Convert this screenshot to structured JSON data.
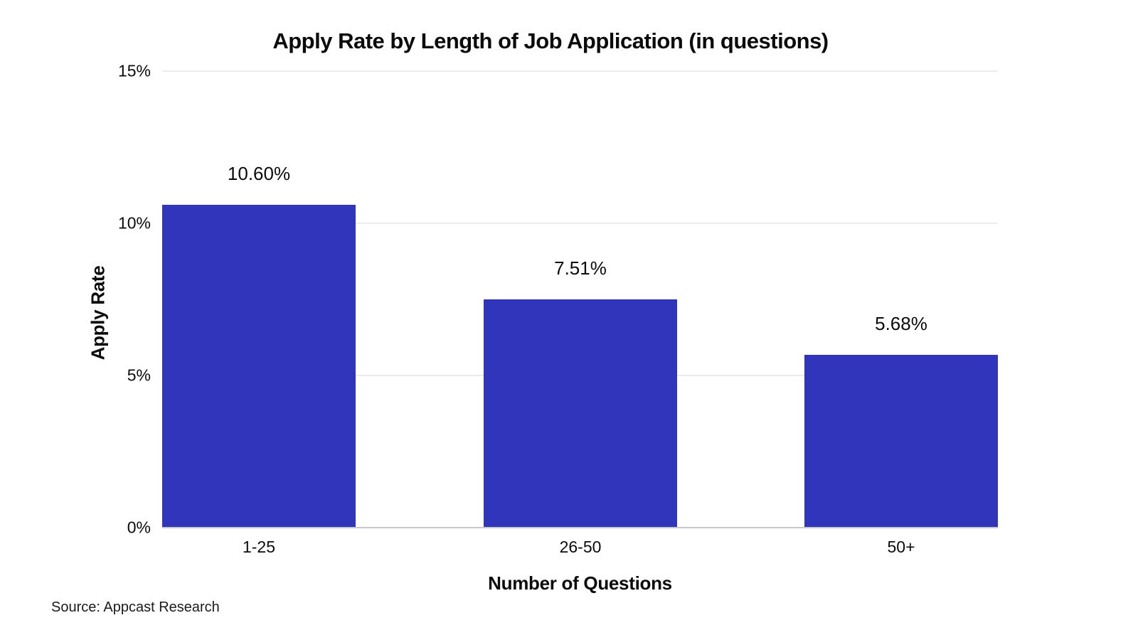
{
  "title": "Apply Rate by Length of Job Application (in questions)",
  "source_note": "Source: Appcast Research",
  "colors": {
    "bar": "#3135BC",
    "gridline": "#ececec",
    "baseline": "#c9c9c9",
    "text": "#0b0b0b",
    "background": "#ffffff"
  },
  "chart_data": {
    "type": "bar",
    "title": "Apply Rate by Length of Job Application (in questions)",
    "categories": [
      "1-25",
      "26-50",
      "50+"
    ],
    "values": [
      10.6,
      7.51,
      5.68
    ],
    "value_labels": [
      "10.60%",
      "7.51%",
      "5.68%"
    ],
    "xlabel": "Number of Questions",
    "ylabel": "Apply Rate",
    "ylim": [
      0,
      15
    ],
    "yticks": [
      0,
      5,
      10,
      15
    ],
    "ytick_labels": [
      "0%",
      "5%",
      "10%",
      "15%"
    ],
    "grid": true,
    "legend_position": "none",
    "bar_color": "#3135BC"
  }
}
